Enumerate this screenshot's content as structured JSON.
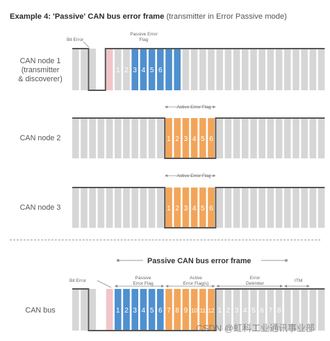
{
  "title": {
    "bold": "Example 4: 'Passive' CAN bus error frame",
    "normal": "(transmitter in Error Passive mode)"
  },
  "nodes": {
    "node1": "CAN node 1\n(transmitter\n& discoverer)",
    "node2": "CAN node 2",
    "node3": "CAN node 3",
    "bus": "CAN bus"
  },
  "labels": {
    "bit_error_top": "Bit Error",
    "passive_flag_top": "Passive Error\nFlag",
    "active_flag_n2": "Active Error Flag",
    "active_flag_n3": "Active Error Flag",
    "bus_header": "Passive CAN bus error frame",
    "bit_error_bus": "Bit Error",
    "passive_flag_bus": "Passive\nError Flag",
    "active_flags_bus": "Active\nError Flag(s)",
    "error_delim_bus": "Error\nDelimiter",
    "itm_bus": "ITM"
  },
  "numbers": {
    "node1": [
      "1",
      "2",
      "3",
      "4",
      "5",
      "6"
    ],
    "node2": [
      "1",
      "2",
      "3",
      "4",
      "5",
      "6"
    ],
    "node3": [
      "1",
      "2",
      "3",
      "4",
      "5",
      "6"
    ],
    "bus_blue": [
      "1",
      "2",
      "3",
      "4",
      "5",
      "6"
    ],
    "bus_orange": [
      "7",
      "8",
      "9",
      "10",
      "11",
      "12"
    ],
    "bus_gray": [
      "1",
      "2",
      "3",
      "4",
      "5",
      "6",
      "7",
      "8"
    ]
  },
  "watermark": "CSDN @虹科工业通讯事业部",
  "colors": {
    "gray": "#d6d6d6",
    "blue": "#4f90cf",
    "orange": "#f2a55a",
    "pink": "#f2c5c8",
    "line": "#555555"
  }
}
